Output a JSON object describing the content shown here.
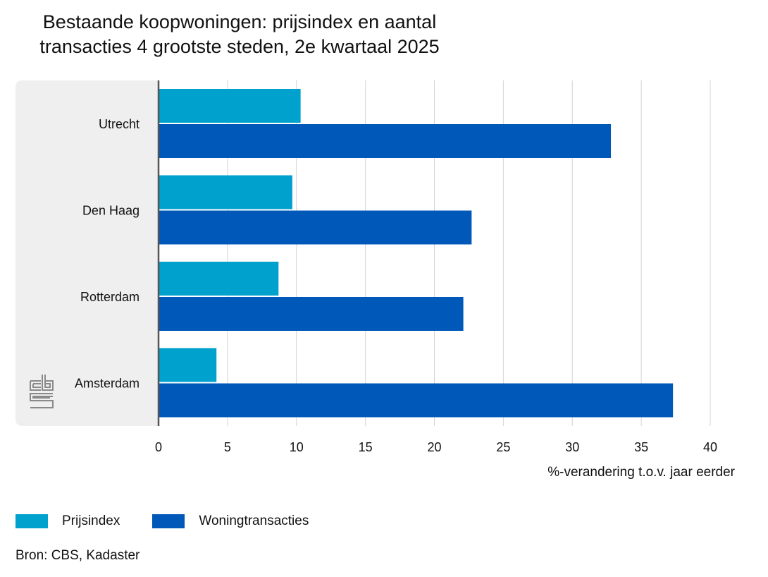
{
  "title_line1": "Bestaande koopwoningen: prijsindex en aantal",
  "title_line2": "transacties 4 grootste steden, 2e kwartaal 2025",
  "source": "Bron: CBS, Kadaster",
  "colors": {
    "prijsindex": "#00a1cd",
    "woningtransacties": "#0058b8",
    "panel": "#efefef",
    "grid": "#d4d4d4",
    "axis": "#555555",
    "logo": "#8a8a8a"
  },
  "logo_icon": "cbs-logo-icon",
  "chart_data": {
    "type": "bar",
    "orientation": "horizontal",
    "title": "Bestaande koopwoningen: prijsindex en aantal transacties 4 grootste steden, 2e kwartaal 2025",
    "categories": [
      "Utrecht",
      "Den Haag",
      "Rotterdam",
      "Amsterdam"
    ],
    "series": [
      {
        "name": "Prijsindex",
        "values": [
          10.3,
          9.7,
          8.7,
          4.2
        ]
      },
      {
        "name": "Woningtransacties",
        "values": [
          32.8,
          22.7,
          22.1,
          37.3
        ]
      }
    ],
    "xlabel": "%-verandering t.o.v. jaar eerder",
    "xlim": [
      0,
      40
    ],
    "xticks": [
      0,
      5,
      10,
      15,
      20,
      25,
      30,
      35,
      40
    ],
    "grid": true,
    "legend": "bottom-left"
  }
}
